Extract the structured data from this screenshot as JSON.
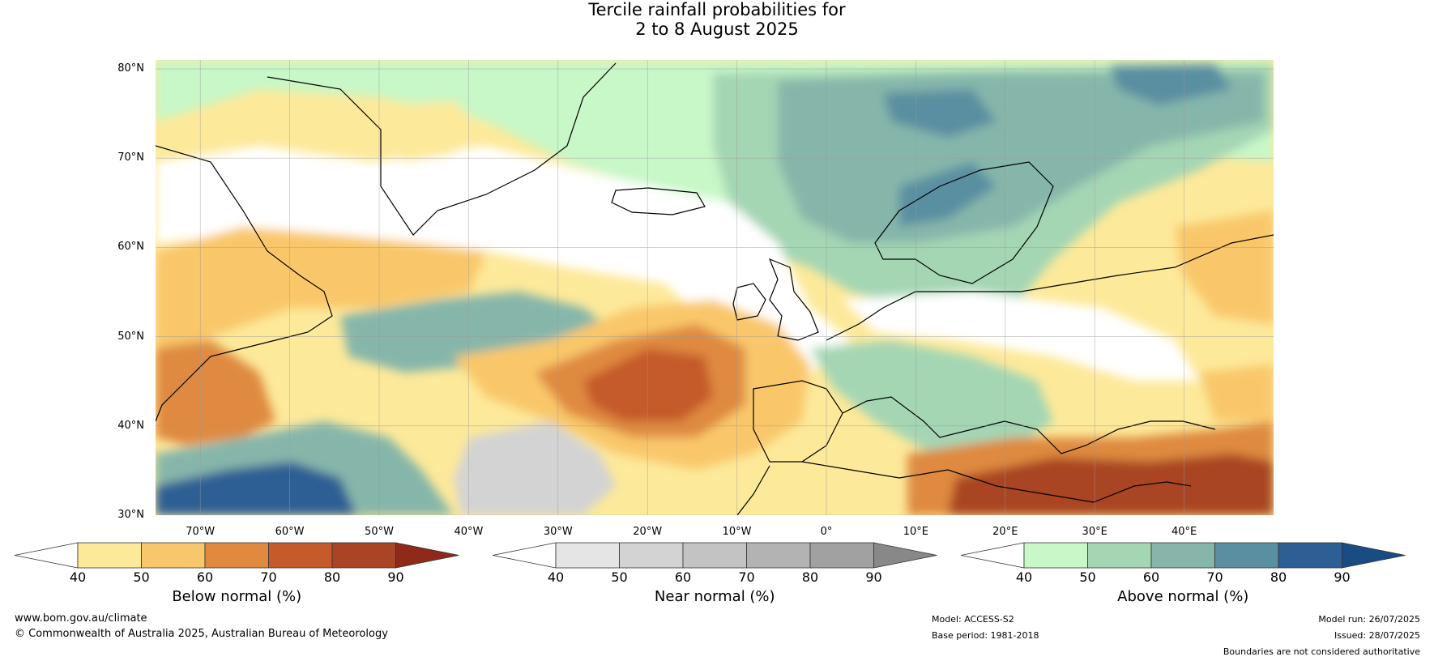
{
  "title": {
    "line1": "Tercile rainfall probabilities for",
    "line2": "2 to 8 August 2025"
  },
  "map": {
    "lat_labels": [
      "80°N",
      "70°N",
      "60°N",
      "50°N",
      "40°N",
      "30°N"
    ],
    "lon_labels": [
      "70°W",
      "60°W",
      "50°W",
      "40°W",
      "30°W",
      "20°W",
      "10°W",
      "0°",
      "10°E",
      "20°E",
      "30°E",
      "40°E"
    ],
    "lon_values": [
      -70,
      -60,
      -50,
      -40,
      -30,
      -20,
      -10,
      0,
      10,
      20,
      30,
      40
    ],
    "lat_values": [
      80,
      70,
      60,
      50,
      40,
      30
    ],
    "extent": {
      "lon_min": -75,
      "lon_max": 50,
      "lat_min": 30,
      "lat_max": 81
    }
  },
  "colorbars": [
    {
      "title": "Below normal (%)",
      "ticks": [
        "40",
        "50",
        "60",
        "70",
        "80",
        "90"
      ],
      "colors": [
        "#ffffff",
        "#fde99a",
        "#f9c76b",
        "#df8a3f",
        "#c55a2b",
        "#a94424",
        "#8f2a1b"
      ]
    },
    {
      "title": "Near normal (%)",
      "ticks": [
        "40",
        "50",
        "60",
        "70",
        "80",
        "90"
      ],
      "colors": [
        "#ffffff",
        "#e5e5e5",
        "#d3d3d3",
        "#c3c3c3",
        "#b3b3b3",
        "#a1a1a1",
        "#888888"
      ]
    },
    {
      "title": "Above normal (%)",
      "ticks": [
        "40",
        "50",
        "60",
        "70",
        "80",
        "90"
      ],
      "colors": [
        "#ffffff",
        "#c8f7c8",
        "#a4d6b4",
        "#86b6aa",
        "#5a8fa1",
        "#2e5f94",
        "#1a4c84"
      ]
    }
  ],
  "footer": {
    "website": "www.bom.gov.au/climate",
    "copyright": "© Commonwealth of Australia 2025, Australian Bureau of Meteorology",
    "model": "Model: ACCESS-S2",
    "base_period": "Base period: 1981-2018",
    "model_run": "Model run: 26/07/2025",
    "issued": "Issued: 28/07/2025",
    "disclaimer": "Boundaries are not considered authoritative"
  }
}
